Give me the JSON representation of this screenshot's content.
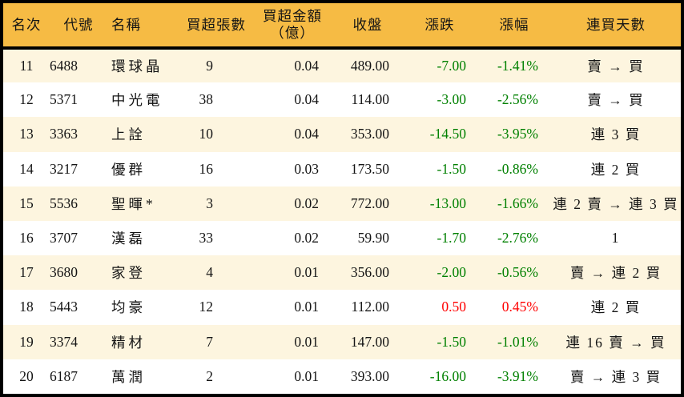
{
  "chart_data": {
    "type": "table",
    "title": "",
    "columns": [
      "名次",
      "代號",
      "名稱",
      "買超張數",
      "買超金額（億）",
      "收盤",
      "漲跌",
      "漲幅",
      "連買天數"
    ],
    "rows": [
      {
        "rank": "11",
        "code": "6488",
        "name": "環球晶",
        "volume": "9",
        "amount": "0.04",
        "close": "489.00",
        "change": "-7.00",
        "change_pct": "-1.41%",
        "streak": "賣 → 買",
        "direction": "down"
      },
      {
        "rank": "12",
        "code": "5371",
        "name": "中光電",
        "volume": "38",
        "amount": "0.04",
        "close": "114.00",
        "change": "-3.00",
        "change_pct": "-2.56%",
        "streak": "賣 → 買",
        "direction": "down"
      },
      {
        "rank": "13",
        "code": "3363",
        "name": "上詮",
        "volume": "10",
        "amount": "0.04",
        "close": "353.00",
        "change": "-14.50",
        "change_pct": "-3.95%",
        "streak": "連 3 買",
        "direction": "down"
      },
      {
        "rank": "14",
        "code": "3217",
        "name": "優群",
        "volume": "16",
        "amount": "0.03",
        "close": "173.50",
        "change": "-1.50",
        "change_pct": "-0.86%",
        "streak": "連 2 買",
        "direction": "down"
      },
      {
        "rank": "15",
        "code": "5536",
        "name": "聖暉*",
        "volume": "3",
        "amount": "0.02",
        "close": "772.00",
        "change": "-13.00",
        "change_pct": "-1.66%",
        "streak": "連 2 賣 → 連 3 買",
        "direction": "down"
      },
      {
        "rank": "16",
        "code": "3707",
        "name": "漢磊",
        "volume": "33",
        "amount": "0.02",
        "close": "59.90",
        "change": "-1.70",
        "change_pct": "-2.76%",
        "streak": "1",
        "direction": "down"
      },
      {
        "rank": "17",
        "code": "3680",
        "name": "家登",
        "volume": "4",
        "amount": "0.01",
        "close": "356.00",
        "change": "-2.00",
        "change_pct": "-0.56%",
        "streak": "賣 → 連 2 買",
        "direction": "down"
      },
      {
        "rank": "18",
        "code": "5443",
        "name": "均豪",
        "volume": "12",
        "amount": "0.01",
        "close": "112.00",
        "change": "0.50",
        "change_pct": "0.45%",
        "streak": "連 2 買",
        "direction": "up"
      },
      {
        "rank": "19",
        "code": "3374",
        "name": "精材",
        "volume": "7",
        "amount": "0.01",
        "close": "147.00",
        "change": "-1.50",
        "change_pct": "-1.01%",
        "streak": "連 16 賣 → 買",
        "direction": "down"
      },
      {
        "rank": "20",
        "code": "6187",
        "name": "萬潤",
        "volume": "2",
        "amount": "0.01",
        "close": "393.00",
        "change": "-16.00",
        "change_pct": "-3.91%",
        "streak": "賣 → 連 3 買",
        "direction": "down"
      }
    ]
  },
  "header": {
    "rank": "名次",
    "code": "代號",
    "name": "名稱",
    "volume": "買超張數",
    "amount_line1": "買超金額",
    "amount_line2": "（億）",
    "close": "收盤",
    "change": "漲跌",
    "change_pct": "漲幅",
    "streak": "連買天數"
  },
  "colors": {
    "header_bg": "#F6BB44",
    "row_stripe_bg": "#FDF5DF",
    "row_bg": "#FFFFFF",
    "up_text": "#FF0000",
    "down_text": "#008000",
    "border": "#000000",
    "text": "#151515"
  }
}
